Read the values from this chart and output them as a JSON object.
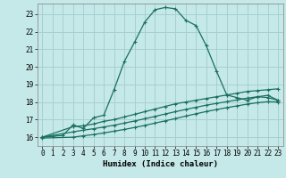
{
  "xlabel": "Humidex (Indice chaleur)",
  "background_color": "#c5e8e8",
  "grid_color": "#a8d0d0",
  "line_color": "#1a7060",
  "xlim": [
    -0.5,
    23.5
  ],
  "ylim": [
    15.5,
    23.6
  ],
  "xticks": [
    0,
    1,
    2,
    3,
    4,
    5,
    6,
    7,
    8,
    9,
    10,
    11,
    12,
    13,
    14,
    15,
    16,
    17,
    18,
    19,
    20,
    21,
    22,
    23
  ],
  "yticks": [
    16,
    17,
    18,
    19,
    20,
    21,
    22,
    23
  ],
  "line1_x": [
    0,
    1,
    2,
    3,
    4,
    5,
    6,
    7,
    8,
    9,
    10,
    11,
    12,
    13,
    14,
    15,
    16,
    17,
    18,
    19,
    20,
    21,
    22,
    23
  ],
  "line1_y": [
    16.0,
    16.05,
    16.1,
    16.7,
    16.5,
    17.1,
    17.25,
    18.7,
    20.3,
    21.4,
    22.55,
    23.25,
    23.38,
    23.3,
    22.65,
    22.35,
    21.2,
    19.75,
    18.4,
    18.25,
    18.1,
    18.3,
    18.25,
    18.1
  ],
  "line2_x": [
    0,
    3,
    4,
    5,
    6,
    7,
    8,
    9,
    10,
    11,
    12,
    13,
    14,
    15,
    16,
    17,
    18,
    19,
    20,
    21,
    22,
    23
  ],
  "line2_y": [
    16.0,
    16.6,
    16.65,
    16.75,
    16.9,
    17.0,
    17.15,
    17.3,
    17.45,
    17.6,
    17.75,
    17.9,
    18.0,
    18.1,
    18.2,
    18.3,
    18.4,
    18.5,
    18.6,
    18.65,
    18.7,
    18.75
  ],
  "line3_x": [
    0,
    3,
    4,
    5,
    6,
    7,
    8,
    9,
    10,
    11,
    12,
    13,
    14,
    15,
    16,
    17,
    18,
    19,
    20,
    21,
    22,
    23
  ],
  "line3_y": [
    16.0,
    16.3,
    16.4,
    16.48,
    16.58,
    16.68,
    16.8,
    16.92,
    17.05,
    17.18,
    17.32,
    17.45,
    17.58,
    17.7,
    17.82,
    17.92,
    18.02,
    18.12,
    18.22,
    18.3,
    18.38,
    18.1
  ],
  "line4_x": [
    0,
    3,
    4,
    5,
    6,
    7,
    8,
    9,
    10,
    11,
    12,
    13,
    14,
    15,
    16,
    17,
    18,
    19,
    20,
    21,
    22,
    23
  ],
  "line4_y": [
    15.95,
    16.0,
    16.08,
    16.15,
    16.24,
    16.34,
    16.44,
    16.55,
    16.67,
    16.8,
    16.93,
    17.06,
    17.2,
    17.33,
    17.46,
    17.57,
    17.68,
    17.78,
    17.88,
    17.96,
    18.02,
    18.0
  ]
}
